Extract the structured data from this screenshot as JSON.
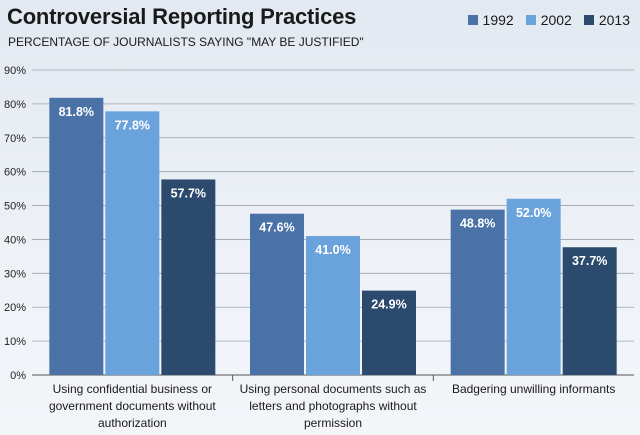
{
  "chart_data": {
    "type": "bar",
    "title": "Controversial Reporting Practices",
    "subtitle": "PERCENTAGE OF JOURNALISTS SAYING \"MAY BE JUSTIFIED\"",
    "categories": [
      "Using confidential business or government documents without authorization",
      "Using personal documents such as letters and photographs without permission",
      "Badgering unwilling informants"
    ],
    "category_lines": [
      [
        "Using confidential business or",
        "government documents without",
        "authorization"
      ],
      [
        "Using personal documents such as",
        "letters and photographs without",
        "permission"
      ],
      [
        "Badgering unwilling informants"
      ]
    ],
    "series": [
      {
        "name": "1992",
        "values": [
          81.8,
          47.6,
          48.8
        ],
        "labels": [
          "81.8%",
          "47.6%",
          "48.8%"
        ],
        "color": "#4a72a6"
      },
      {
        "name": "2002",
        "values": [
          77.8,
          41.0,
          52.0
        ],
        "labels": [
          "77.8%",
          "41.0%",
          "52.0%"
        ],
        "color": "#6aa2dc"
      },
      {
        "name": "2013",
        "values": [
          57.7,
          24.9,
          37.7
        ],
        "labels": [
          "57.7%",
          "24.9%",
          "37.7%"
        ],
        "color": "#2c4a6e"
      }
    ],
    "ylim": [
      0,
      90
    ],
    "yticks": [
      "0%",
      "10%",
      "20%",
      "30%",
      "40%",
      "50%",
      "60%",
      "70%",
      "80%",
      "90%"
    ],
    "xlabel": "",
    "ylabel": "",
    "grid": true,
    "legend_position": "top-right"
  }
}
